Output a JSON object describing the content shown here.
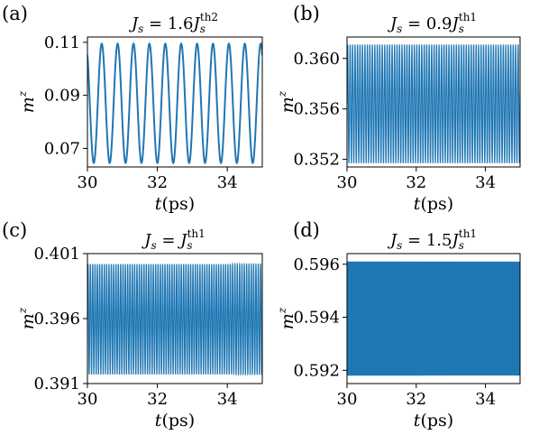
{
  "figure": {
    "line_color": "#1f77b4"
  },
  "chart_data": [
    {
      "type": "line",
      "panel_label": "(a)",
      "title": {
        "lhs": "J",
        "lhs_sub": "s",
        "rhs_coef": "1.6",
        "rhs": "J",
        "rhs_sub": "s",
        "rhs_sup": "th2"
      },
      "xlabel": {
        "var": "t",
        "unit": "(ps)"
      },
      "ylabel": {
        "var": "m",
        "sup": "z"
      },
      "xlim": [
        30,
        35
      ],
      "ylim": [
        0.063,
        0.112
      ],
      "x_ticks": [
        30,
        32,
        34
      ],
      "x_tick_labels": [
        "30",
        "32",
        "34"
      ],
      "y_ticks": [
        0.07,
        0.09,
        0.11
      ],
      "y_tick_labels": [
        "0.07",
        "0.09",
        "0.11"
      ],
      "series": [
        {
          "min": 0.0645,
          "max": 0.1095,
          "period_ps": 0.4545,
          "phase": 2.2,
          "x_start": 30,
          "x_end": 35
        }
      ]
    },
    {
      "type": "line",
      "panel_label": "(b)",
      "title": {
        "lhs": "J",
        "lhs_sub": "s",
        "rhs_coef": "0.9",
        "rhs": "J",
        "rhs_sub": "s",
        "rhs_sup": "th1"
      },
      "xlabel": {
        "var": "t",
        "unit": "(ps)"
      },
      "ylabel": {
        "var": "m",
        "sup": "z"
      },
      "xlim": [
        30,
        35
      ],
      "ylim": [
        0.3514,
        0.3617
      ],
      "x_ticks": [
        30,
        32,
        34
      ],
      "x_tick_labels": [
        "30",
        "32",
        "34"
      ],
      "y_ticks": [
        0.352,
        0.356,
        0.36
      ],
      "y_tick_labels": [
        "0.352",
        "0.356",
        "0.360"
      ],
      "series": [
        {
          "min": 0.3517,
          "max": 0.3611,
          "period_ps": 0.0714,
          "phase": 0.0,
          "x_start": 30,
          "x_end": 35
        }
      ]
    },
    {
      "type": "line",
      "panel_label": "(c)",
      "title": {
        "lhs": "J",
        "lhs_sub": "s",
        "rhs_coef": "",
        "rhs": "J",
        "rhs_sub": "s",
        "rhs_sup": "th1"
      },
      "xlabel": {
        "var": "t",
        "unit": "(ps)"
      },
      "ylabel": {
        "var": "m",
        "sup": "z"
      },
      "xlim": [
        30,
        35
      ],
      "ylim": [
        0.391,
        0.401
      ],
      "x_ticks": [
        30,
        32,
        34
      ],
      "x_tick_labels": [
        "30",
        "32",
        "34"
      ],
      "y_ticks": [
        0.391,
        0.396,
        0.401
      ],
      "y_tick_labels": [
        "0.391",
        "0.396",
        "0.401"
      ],
      "series": [
        {
          "min": 0.3917,
          "max": 0.4002,
          "period_ps": 0.0667,
          "phase": 0.0,
          "x_start": 30,
          "x_end": 35
        }
      ]
    },
    {
      "type": "line",
      "panel_label": "(d)",
      "title": {
        "lhs": "J",
        "lhs_sub": "s",
        "rhs_coef": "1.5",
        "rhs": "J",
        "rhs_sub": "s",
        "rhs_sup": "th1"
      },
      "xlabel": {
        "var": "t",
        "unit": "(ps)"
      },
      "ylabel": {
        "var": "m",
        "sup": "z"
      },
      "xlim": [
        30,
        35
      ],
      "ylim": [
        0.5915,
        0.5964
      ],
      "x_ticks": [
        30,
        32,
        34
      ],
      "x_tick_labels": [
        "30",
        "32",
        "34"
      ],
      "y_ticks": [
        0.592,
        0.594,
        0.596
      ],
      "y_tick_labels": [
        "0.592",
        "0.594",
        "0.596"
      ],
      "series": [
        {
          "min": 0.5918,
          "max": 0.5961,
          "period_ps": 0.0238,
          "phase": 0.0,
          "x_start": 30,
          "x_end": 35
        }
      ]
    }
  ]
}
